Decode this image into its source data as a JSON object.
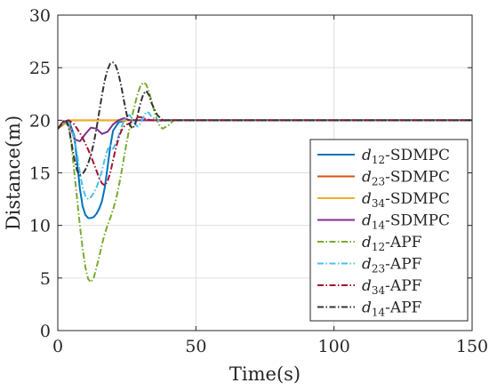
{
  "chart_data": {
    "type": "line",
    "xlabel": "Time(s)",
    "ylabel": "Distance(m)",
    "xlim": [
      0,
      150
    ],
    "ylim": [
      0,
      30
    ],
    "xticks": [
      0,
      50,
      100,
      150
    ],
    "yticks": [
      0,
      5,
      10,
      15,
      20,
      25,
      30
    ],
    "grid": true,
    "legend_position": "right",
    "series": [
      {
        "name": "d12-SDMPC",
        "legend_var": "d",
        "legend_sub": "12",
        "legend_suffix": "-SDMPC",
        "color": "#0072BD",
        "dash": "solid",
        "x": [
          0,
          2,
          4,
          6,
          7,
          8,
          9,
          10,
          11,
          12,
          13,
          14,
          15,
          16,
          17,
          18,
          19,
          20,
          22,
          25,
          30,
          40,
          150
        ],
        "y": [
          19.2,
          19.7,
          20.0,
          18.5,
          16.0,
          13.5,
          11.8,
          11.0,
          10.7,
          10.7,
          10.8,
          11.1,
          11.6,
          12.3,
          13.6,
          15.5,
          17.5,
          19.0,
          19.8,
          20.0,
          20.0,
          20.0,
          20.0
        ]
      },
      {
        "name": "d23-SDMPC",
        "legend_var": "d",
        "legend_sub": "23",
        "legend_suffix": "-SDMPC",
        "color": "#D95319",
        "dash": "solid",
        "x": [
          0,
          3,
          5,
          8,
          10,
          15,
          20,
          150
        ],
        "y": [
          19.2,
          19.8,
          20.0,
          20.0,
          20.0,
          20.0,
          20.0,
          20.0
        ]
      },
      {
        "name": "d34-SDMPC",
        "legend_var": "d",
        "legend_sub": "34",
        "legend_suffix": "-SDMPC",
        "color": "#EDB120",
        "dash": "solid",
        "x": [
          0,
          3,
          5,
          8,
          10,
          20,
          30,
          150
        ],
        "y": [
          19.2,
          19.9,
          20.0,
          20.0,
          20.0,
          20.0,
          20.0,
          20.0
        ]
      },
      {
        "name": "d14-SDMPC",
        "legend_var": "d",
        "legend_sub": "14",
        "legend_suffix": "-SDMPC",
        "color": "#7E2F8E",
        "dash": "solid",
        "x": [
          0,
          2,
          4,
          6,
          8,
          10,
          12,
          14,
          16,
          18,
          20,
          22,
          24,
          26,
          28,
          30,
          150
        ],
        "y": [
          19.2,
          19.9,
          19.9,
          18.2,
          18.0,
          18.7,
          19.3,
          19.2,
          18.7,
          18.9,
          19.6,
          20.0,
          20.2,
          20.0,
          20.0,
          20.0,
          20.0
        ]
      },
      {
        "name": "d12-APF",
        "legend_var": "d",
        "legend_sub": "12",
        "legend_suffix": "-APF",
        "color": "#77AC30",
        "dash": "dashdot",
        "x": [
          0,
          2,
          4,
          5,
          6,
          7,
          8,
          9,
          10,
          11,
          12,
          13,
          14,
          15,
          16,
          17,
          18,
          19,
          20,
          21,
          22,
          23,
          24,
          25,
          26,
          27,
          28,
          29,
          30,
          31,
          32,
          33,
          34,
          35,
          36,
          37,
          38,
          40,
          42,
          45,
          150
        ],
        "y": [
          19.2,
          19.9,
          19.5,
          17.5,
          15.0,
          12.5,
          10.0,
          7.8,
          6.0,
          4.9,
          4.6,
          5.0,
          6.0,
          7.0,
          8.2,
          9.2,
          10.0,
          10.7,
          11.5,
          12.4,
          13.6,
          15.0,
          16.5,
          18.0,
          19.3,
          20.5,
          21.6,
          22.6,
          23.3,
          23.6,
          23.4,
          22.7,
          21.8,
          20.8,
          20.0,
          19.4,
          19.2,
          19.5,
          20.0,
          20.0,
          20.0
        ]
      },
      {
        "name": "d23-APF",
        "legend_var": "d",
        "legend_sub": "23",
        "legend_suffix": "-APF",
        "color": "#4DBEEE",
        "dash": "dashdot",
        "x": [
          0,
          2,
          4,
          6,
          7,
          8,
          9,
          10,
          11,
          12,
          13,
          14,
          15,
          16,
          17,
          18,
          19,
          20,
          21,
          22,
          23,
          24,
          25,
          26,
          27,
          28,
          29,
          30,
          31,
          32,
          33,
          34,
          36,
          38,
          40,
          150
        ],
        "y": [
          19.2,
          19.8,
          19.8,
          18.3,
          16.8,
          15.0,
          13.6,
          12.8,
          12.5,
          12.7,
          13.1,
          13.6,
          14.3,
          15.2,
          16.3,
          17.2,
          17.6,
          17.3,
          17.8,
          18.5,
          19.3,
          20.0,
          20.4,
          20.5,
          20.1,
          19.6,
          19.4,
          19.7,
          20.3,
          20.8,
          20.7,
          20.3,
          20.0,
          19.9,
          20.0,
          20.0
        ]
      },
      {
        "name": "d34-APF",
        "legend_var": "d",
        "legend_sub": "34",
        "legend_suffix": "-APF",
        "color": "#A2142F",
        "dash": "dashdot",
        "x": [
          0,
          2,
          4,
          6,
          8,
          10,
          12,
          14,
          15,
          16,
          17,
          18,
          19,
          20,
          21,
          22,
          23,
          24,
          25,
          26,
          27,
          28,
          29,
          30,
          32,
          34,
          36,
          150
        ],
        "y": [
          19.2,
          19.9,
          20.0,
          19.6,
          18.8,
          17.8,
          16.6,
          15.2,
          14.5,
          14.0,
          13.8,
          14.2,
          15.0,
          16.2,
          17.3,
          18.3,
          19.0,
          19.4,
          19.6,
          19.7,
          19.9,
          20.1,
          20.3,
          20.3,
          20.1,
          20.0,
          20.0,
          20.0
        ]
      },
      {
        "name": "d14-APF",
        "legend_var": "d",
        "legend_sub": "14",
        "legend_suffix": "-APF",
        "color": "#333333",
        "dash": "dashdot",
        "x": [
          0,
          2,
          3,
          4,
          5,
          6,
          7,
          8,
          9,
          10,
          11,
          12,
          13,
          14,
          15,
          16,
          17,
          18,
          19,
          20,
          21,
          22,
          23,
          24,
          25,
          26,
          27,
          28,
          29,
          30,
          31,
          32,
          33,
          34,
          36,
          38,
          40,
          150
        ],
        "y": [
          19.2,
          19.8,
          20.0,
          19.3,
          17.8,
          16.3,
          15.2,
          14.8,
          14.9,
          15.3,
          15.9,
          16.7,
          17.8,
          19.2,
          20.8,
          22.4,
          23.8,
          24.8,
          25.4,
          25.5,
          25.2,
          24.4,
          23.2,
          21.8,
          20.5,
          19.6,
          19.2,
          19.6,
          20.6,
          21.7,
          22.5,
          22.8,
          22.4,
          21.6,
          20.5,
          20.0,
          20.0,
          20.0
        ]
      }
    ]
  }
}
